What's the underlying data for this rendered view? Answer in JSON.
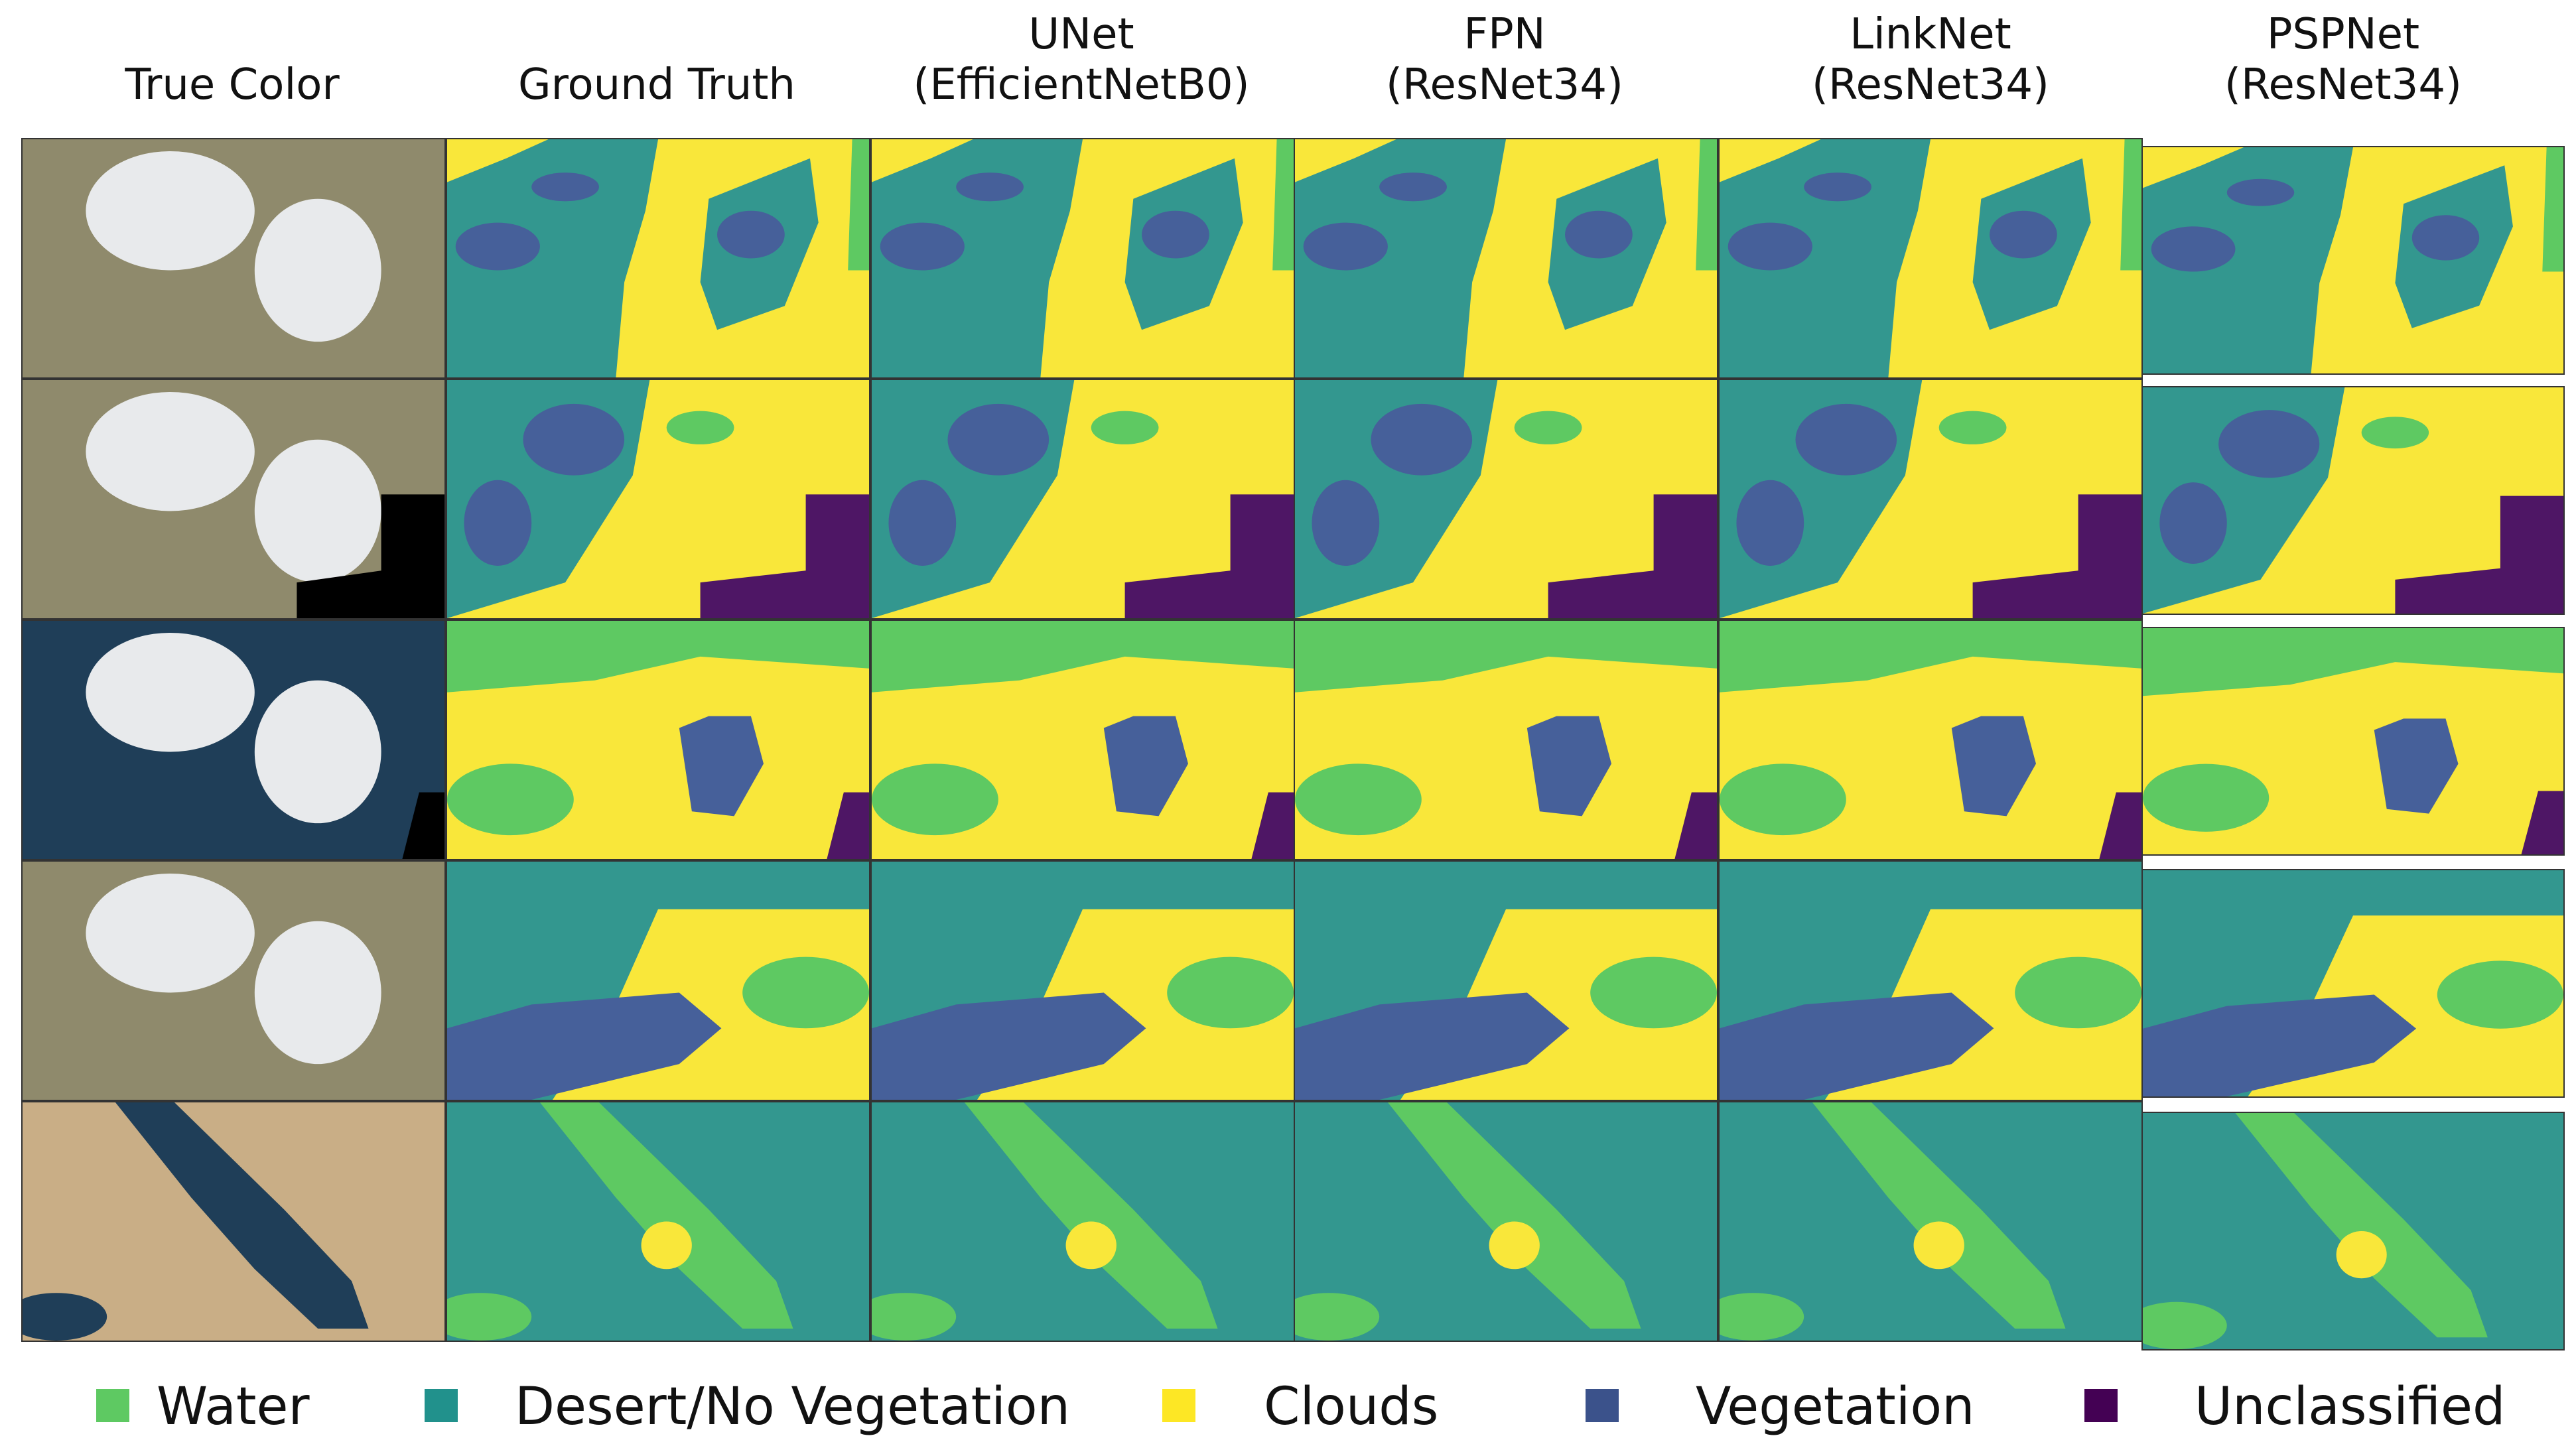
{
  "figure": {
    "columns": [
      {
        "id": "true-color",
        "title": "True Color"
      },
      {
        "id": "ground-truth",
        "title": "Ground Truth"
      },
      {
        "id": "unet",
        "title": "UNet\n(EfficientNetB0)"
      },
      {
        "id": "fpn",
        "title": "FPN\n(ResNet34)"
      },
      {
        "id": "linknet",
        "title": "LinkNet\n(ResNet34)"
      },
      {
        "id": "pspnet",
        "title": "PSPNet\n(ResNet34)"
      }
    ],
    "row_count": 5
  },
  "legend": {
    "items": [
      {
        "label": "Water",
        "color": "#5ec962"
      },
      {
        "label": "Desert/No Vegetation",
        "color": "#21918c"
      },
      {
        "label": "Clouds",
        "color": "#fde725"
      },
      {
        "label": "Vegetation",
        "color": "#3b528b"
      },
      {
        "label": "Unclassified",
        "color": "#440154"
      }
    ]
  },
  "colors": {
    "water": "#5ec962",
    "desert": "#33978f",
    "clouds": "#f9e73a",
    "vegetation": "#46609a",
    "unclassified": "#4e1665",
    "photo_land": "#8f8a6c",
    "photo_cloud": "#e8eaec",
    "photo_sea": "#1f3e58",
    "photo_black": "#000000",
    "photo_desert": "#c9ae86"
  }
}
